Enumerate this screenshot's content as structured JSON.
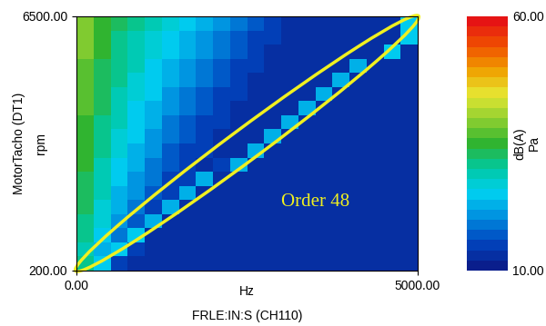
{
  "chart_data": {
    "type": "heatmap",
    "x_label": "FRLE:IN:S (CH110)",
    "x_unit": "Hz",
    "y_label": "MotorTacho (DT1)",
    "y_unit": "rpm",
    "annotations": [
      "Order 48"
    ],
    "xlim": [
      0,
      5000
    ],
    "xticks": [
      {
        "value": 0,
        "label": "0.00"
      },
      {
        "value": 5000,
        "label": "5000.00"
      }
    ],
    "ylim": [
      200,
      6500
    ],
    "yticks": [
      {
        "value": 200,
        "label": "200.00"
      },
      {
        "value": 6500,
        "label": "6500.00"
      }
    ],
    "x_edges": [
      0,
      250,
      500,
      750,
      1000,
      1250,
      1500,
      1750,
      2000,
      2250,
      2500,
      2750,
      3000,
      3250,
      3500,
      3750,
      4000,
      4250,
      4500,
      4750,
      5000
    ],
    "y_edges": [
      200,
      550,
      900,
      1250,
      1600,
      1950,
      2300,
      2650,
      3000,
      3350,
      3700,
      4050,
      4400,
      4750,
      5100,
      5450,
      5800,
      6150,
      6500
    ],
    "cells": [
      [
        30,
        25,
        14,
        13,
        13,
        13,
        13,
        13,
        13,
        13,
        13,
        13,
        13,
        13,
        13,
        13,
        13,
        13,
        13,
        13
      ],
      [
        28,
        22,
        24,
        14,
        13,
        13,
        13,
        13,
        13,
        13,
        13,
        13,
        13,
        13,
        13,
        13,
        13,
        13,
        13,
        13
      ],
      [
        30,
        24,
        18,
        24,
        13,
        13,
        13,
        13,
        13,
        13,
        13,
        13,
        13,
        13,
        13,
        13,
        13,
        13,
        13,
        13
      ],
      [
        30,
        26,
        20,
        16,
        23,
        13,
        13,
        13,
        13,
        13,
        13,
        13,
        13,
        13,
        13,
        13,
        13,
        13,
        13,
        13
      ],
      [
        32,
        27,
        22,
        18,
        15,
        23,
        13,
        13,
        13,
        13,
        13,
        13,
        13,
        13,
        13,
        13,
        13,
        13,
        13,
        13
      ],
      [
        32,
        28,
        22,
        20,
        16,
        14,
        23,
        13,
        13,
        13,
        13,
        13,
        13,
        13,
        13,
        13,
        13,
        13,
        13,
        13
      ],
      [
        33,
        28,
        24,
        20,
        18,
        15,
        14,
        22,
        13,
        13,
        13,
        13,
        13,
        13,
        13,
        13,
        13,
        13,
        13,
        13
      ],
      [
        34,
        29,
        25,
        22,
        19,
        16,
        14,
        13,
        14,
        22,
        13,
        13,
        13,
        13,
        13,
        13,
        13,
        13,
        13,
        13
      ],
      [
        34,
        30,
        26,
        22,
        20,
        17,
        15,
        14,
        13,
        13,
        22,
        13,
        13,
        13,
        13,
        13,
        13,
        13,
        13,
        13
      ],
      [
        35,
        30,
        27,
        24,
        21,
        18,
        16,
        14,
        13,
        13,
        13,
        22,
        13,
        13,
        13,
        13,
        13,
        13,
        13,
        13
      ],
      [
        35,
        31,
        28,
        25,
        22,
        19,
        17,
        15,
        14,
        13,
        13,
        13,
        22,
        13,
        13,
        13,
        13,
        13,
        13,
        13
      ],
      [
        36,
        32,
        28,
        25,
        23,
        20,
        18,
        16,
        14,
        13,
        13,
        13,
        13,
        22,
        13,
        13,
        13,
        13,
        13,
        13
      ],
      [
        36,
        32,
        29,
        26,
        24,
        21,
        19,
        17,
        15,
        14,
        13,
        13,
        13,
        13,
        23,
        13,
        13,
        13,
        13,
        13
      ],
      [
        37,
        33,
        30,
        27,
        24,
        22,
        20,
        18,
        16,
        14,
        13,
        13,
        13,
        13,
        13,
        23,
        13,
        13,
        13,
        13
      ],
      [
        37,
        33,
        30,
        28,
        25,
        23,
        21,
        19,
        17,
        15,
        14,
        13,
        13,
        13,
        13,
        13,
        23,
        13,
        13,
        13
      ],
      [
        38,
        34,
        31,
        28,
        26,
        24,
        22,
        20,
        18,
        16,
        14,
        13,
        13,
        13,
        13,
        13,
        13,
        13,
        24,
        13
      ],
      [
        38,
        35,
        31,
        29,
        27,
        25,
        23,
        21,
        19,
        17,
        15,
        14,
        13,
        13,
        13,
        13,
        13,
        13,
        13,
        24
      ],
      [
        38,
        35,
        32,
        30,
        28,
        26,
        24,
        22,
        20,
        18,
        16,
        14,
        13,
        13,
        13,
        13,
        13,
        13,
        13,
        24
      ]
    ],
    "colorbar": {
      "range": [
        10,
        60
      ],
      "ticks": [
        {
          "value": 10,
          "label": "10.00"
        },
        {
          "value": 60,
          "label": "60.00"
        }
      ],
      "labels": [
        "dB(A)",
        "Pa"
      ]
    }
  }
}
